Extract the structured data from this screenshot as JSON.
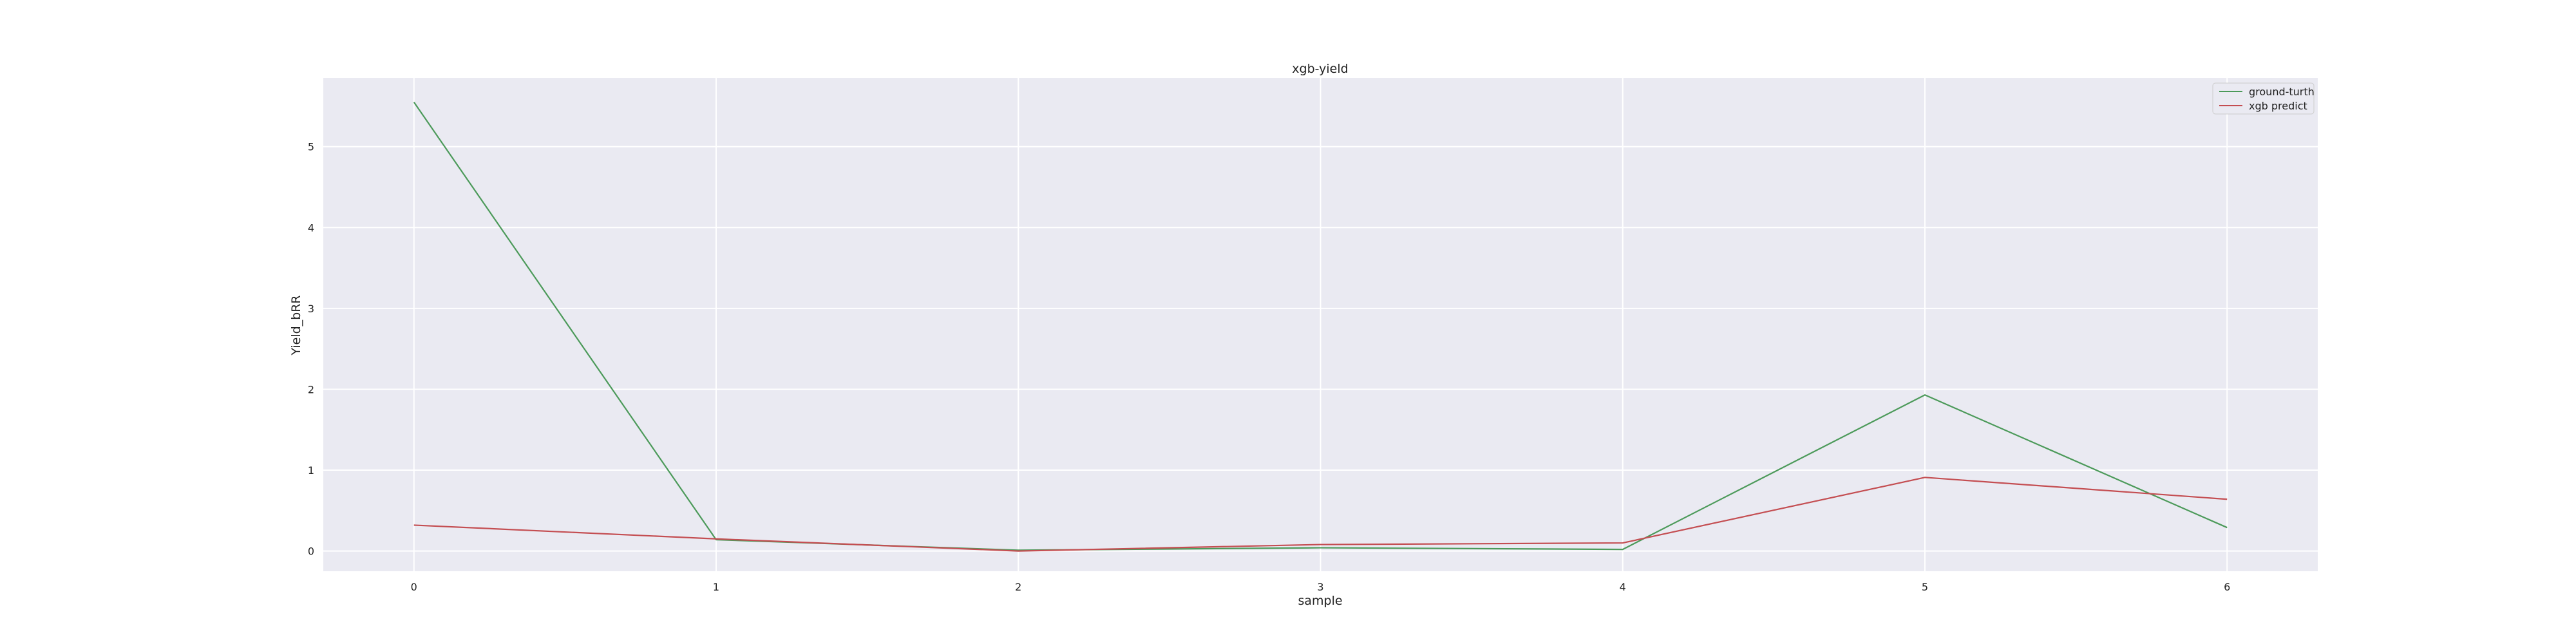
{
  "chart_data": {
    "type": "line",
    "title": "xgb-yield",
    "xlabel": "sample",
    "ylabel": "Yield_bRR",
    "x": [
      0,
      1,
      2,
      3,
      4,
      5,
      6
    ],
    "xticks": [
      "0",
      "1",
      "2",
      "3",
      "4",
      "5",
      "6"
    ],
    "yticks": [
      "0",
      "1",
      "2",
      "3",
      "4",
      "5"
    ],
    "xlim": [
      -0.3,
      6.3
    ],
    "ylim": [
      -0.25,
      5.85
    ],
    "grid": true,
    "legend_position": "top-right",
    "series": [
      {
        "name": "ground-turth",
        "color": "#4c9a5a",
        "values": [
          5.55,
          0.14,
          0.01,
          0.04,
          0.02,
          1.93,
          0.29
        ]
      },
      {
        "name": "xgb predict",
        "color": "#c44e52",
        "values": [
          0.32,
          0.15,
          0.0,
          0.08,
          0.1,
          0.91,
          0.64
        ]
      }
    ]
  }
}
